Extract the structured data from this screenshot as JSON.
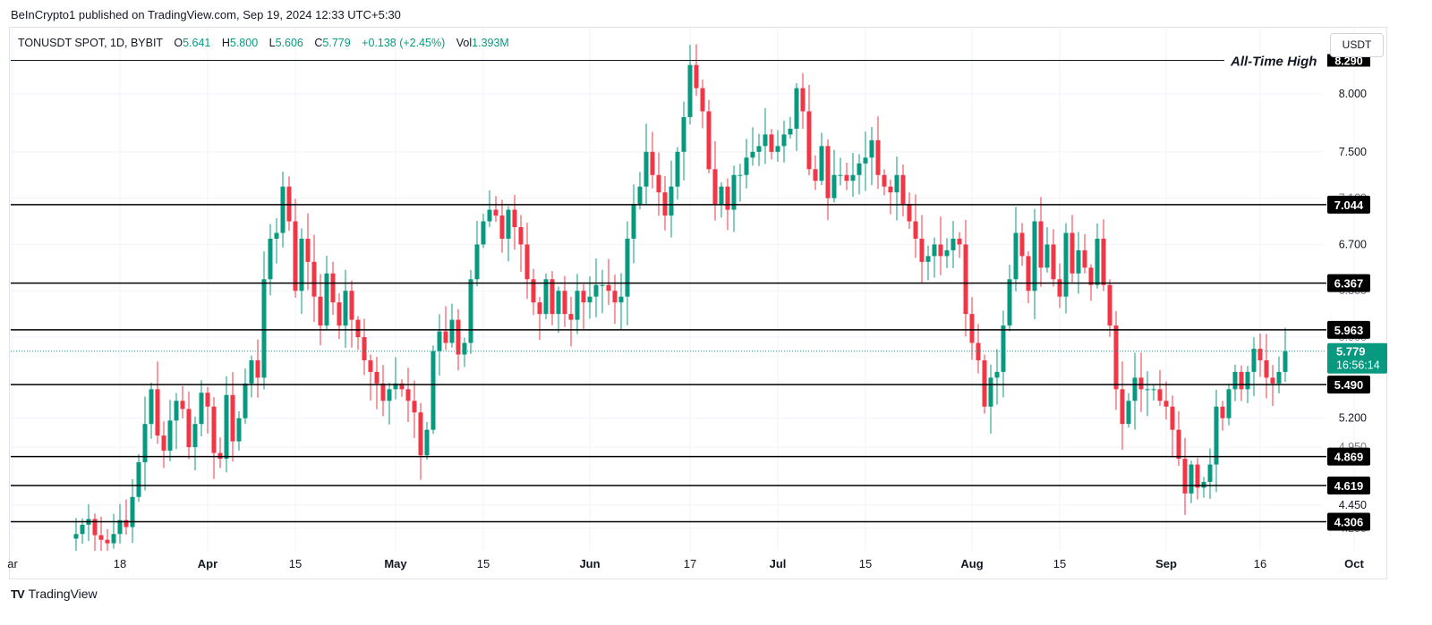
{
  "publisher_line": "BeInCrypto1 published on TradingView.com, Sep 19, 2024 12:33 UTC+5:30",
  "header": {
    "symbol": "TONUSDT SPOT, 1D, BYBIT",
    "o_label": "O",
    "o_value": "5.641",
    "h_label": "H",
    "h_value": "5.800",
    "l_label": "L",
    "l_value": "5.606",
    "c_label": "C",
    "c_value": "5.779",
    "change": "+0.138 (+2.45%)",
    "vol_label": "Vol",
    "vol_value": "1.393M"
  },
  "currency_button": "USDT",
  "footer": {
    "logo_text": "TradingView",
    "logo_mark": "TV"
  },
  "colors": {
    "up": "#089981",
    "down": "#f23645",
    "grid": "#f0f3fa",
    "level_line": "#000000",
    "level_label_bg": "#000000",
    "current_price_bg": "#089981"
  },
  "chart_data": {
    "type": "candlestick",
    "series_name": "TONUSDT",
    "ylim": [
      4.1,
      8.45
    ],
    "axis_ticks": [
      "8.000",
      "7.500",
      "6.700",
      "5.200",
      "4.450"
    ],
    "axis_ticks_partial": [
      "8.290",
      "7.100",
      "6.300",
      "5.900",
      "4.950",
      "4.250"
    ],
    "x_tick_labels": [
      "ar",
      "18",
      "Apr",
      "15",
      "May",
      "15",
      "Jun",
      "17",
      "Jul",
      "15",
      "Aug",
      "15",
      "Sep",
      "16",
      "Oct"
    ],
    "horizontal_levels": [
      7.044,
      6.367,
      5.963,
      5.49,
      4.869,
      4.619,
      4.306
    ],
    "level_labels": [
      "7.044",
      "6.367",
      "5.963",
      "5.490",
      "4.869",
      "4.619",
      "4.306"
    ],
    "all_time_high": {
      "value": 8.29,
      "label": "All-Time High",
      "price_label": "8.290"
    },
    "current_price": {
      "value": 5.779,
      "label": "5.779",
      "countdown": "16:56:14"
    },
    "start_date": "2024-03-11",
    "closes": [
      4.2,
      4.28,
      4.33,
      4.19,
      4.15,
      4.12,
      4.2,
      4.32,
      4.26,
      4.52,
      4.82,
      5.15,
      5.45,
      5.05,
      4.92,
      5.18,
      5.35,
      5.28,
      4.95,
      5.15,
      5.42,
      5.3,
      4.9,
      4.85,
      5.4,
      5.0,
      5.2,
      5.5,
      5.7,
      5.55,
      6.4,
      6.75,
      6.8,
      7.2,
      6.9,
      6.3,
      6.75,
      6.55,
      6.25,
      6.0,
      6.45,
      6.2,
      6.0,
      6.3,
      6.05,
      5.9,
      5.7,
      5.6,
      5.5,
      5.35,
      5.45,
      5.5,
      5.45,
      5.35,
      5.25,
      4.88,
      5.1,
      5.78,
      5.95,
      5.85,
      6.05,
      5.75,
      5.85,
      6.4,
      6.7,
      6.9,
      7.0,
      6.95,
      6.75,
      7.0,
      6.85,
      6.7,
      6.4,
      6.2,
      6.1,
      6.4,
      6.1,
      6.3,
      6.1,
      6.05,
      6.3,
      6.2,
      6.25,
      6.35,
      6.35,
      6.3,
      6.2,
      6.25,
      6.75,
      7.05,
      7.2,
      7.5,
      7.3,
      7.15,
      6.95,
      7.2,
      7.5,
      7.8,
      8.25,
      8.05,
      7.85,
      7.35,
      7.05,
      7.2,
      7.0,
      7.3,
      7.3,
      7.45,
      7.5,
      7.55,
      7.65,
      7.5,
      7.55,
      7.65,
      7.7,
      8.05,
      7.85,
      7.35,
      7.25,
      7.55,
      7.1,
      7.3,
      7.3,
      7.25,
      7.3,
      7.4,
      7.45,
      7.6,
      7.3,
      7.2,
      7.15,
      7.3,
      7.05,
      6.9,
      6.75,
      6.55,
      6.6,
      6.7,
      6.6,
      6.65,
      6.75,
      6.7,
      6.1,
      5.85,
      5.7,
      5.3,
      5.55,
      5.6,
      6.0,
      6.4,
      6.8,
      6.6,
      6.3,
      6.9,
      6.5,
      6.7,
      6.4,
      6.25,
      6.8,
      6.45,
      6.65,
      6.5,
      6.35,
      6.75,
      6.35,
      6.0,
      5.45,
      5.15,
      5.35,
      5.55,
      5.45,
      5.45,
      5.45,
      5.35,
      5.3,
      5.1,
      4.85,
      4.55,
      4.8,
      4.6,
      4.65,
      4.8,
      5.3,
      5.2,
      5.45,
      5.6,
      5.45,
      5.6,
      5.8,
      5.7,
      5.55,
      5.5,
      5.6,
      5.779
    ]
  }
}
